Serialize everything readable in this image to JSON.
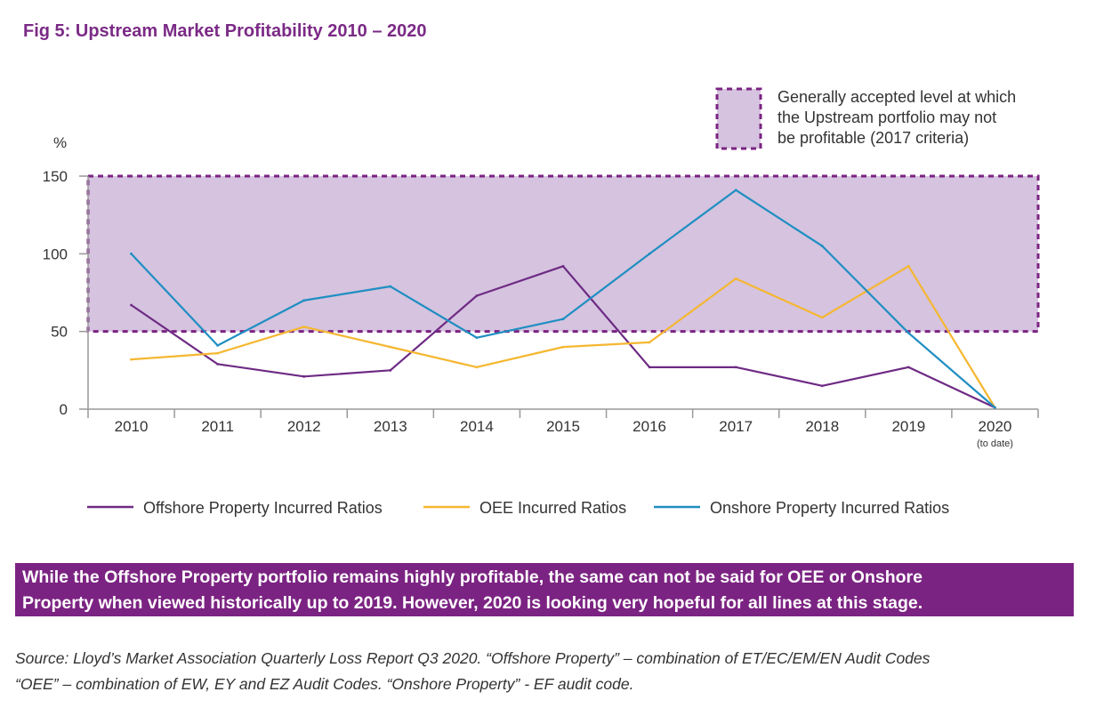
{
  "title": "Fig 5: Upstream Market Profitability 2010 – 2020",
  "band_legend": [
    "Generally accepted level at which",
    "the Upstream portfolio may not",
    "be profitable (2017 criteria)"
  ],
  "takeaway_lines": [
    "While the Offshore Property portfolio remains highly profitable, the same can not be said for OEE or Onshore",
    "Property when viewed historically up to 2019. However, 2020 is looking very hopeful for all lines at this stage."
  ],
  "source_lines": [
    "Source: Lloyd’s Market Association Quarterly Loss Report Q3 2020. “Offshore Property” – combination of ET/EC/EM/EN Audit Codes",
    "“OEE” – combination of EW, EY and EZ Audit Codes. “Onshore Property” - EF audit code."
  ],
  "colors": {
    "title": "#7b2a86",
    "band_fill": "#d5c3df",
    "band_border": "#7b2382",
    "offshore": "#6e2a84",
    "oee": "#f5b731",
    "onshore": "#1f8ec2",
    "axis": "#999999",
    "takeaway_bg": "#7b2382"
  },
  "chart_data": {
    "type": "line",
    "categories": [
      "2010",
      "2011",
      "2012",
      "2013",
      "2014",
      "2015",
      "2016",
      "2017",
      "2018",
      "2019",
      "2020"
    ],
    "category_sublabels": [
      "",
      "",
      "",
      "",
      "",
      "",
      "",
      "",
      "",
      "",
      "(to date)"
    ],
    "ylabel": "%",
    "yticks": [
      0,
      50,
      100,
      150
    ],
    "ylim": [
      0,
      150
    ],
    "band": {
      "from": 50,
      "to": 150
    },
    "series": [
      {
        "name": "Offshore Property Incurred Ratios",
        "color": "#6e2a84",
        "values": [
          67,
          29,
          21,
          25,
          73,
          92,
          27,
          27,
          15,
          27,
          1
        ]
      },
      {
        "name": "OEE Incurred Ratios",
        "color": "#f5b731",
        "values": [
          32,
          36,
          53,
          40,
          27,
          40,
          43,
          84,
          59,
          92,
          1
        ]
      },
      {
        "name": "Onshore Property Incurred Ratios",
        "color": "#1f8ec2",
        "values": [
          100,
          41,
          70,
          79,
          46,
          58,
          100,
          141,
          105,
          49,
          1
        ]
      }
    ]
  }
}
